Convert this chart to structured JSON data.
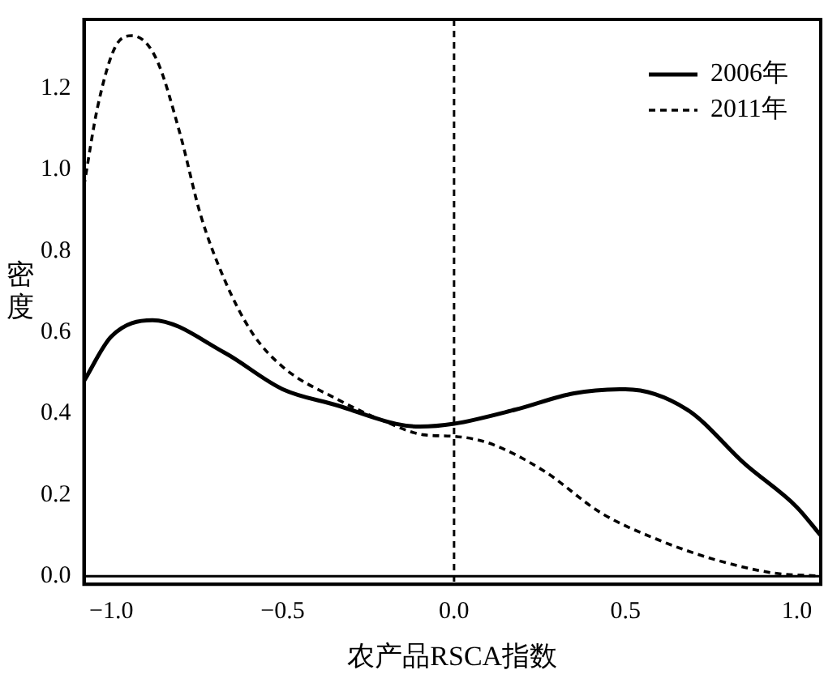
{
  "chart_data": {
    "type": "line",
    "xlabel": "农产品RSCA指数",
    "ylabel": "密度",
    "xlim": [
      -1.08,
      1.07
    ],
    "ylim": [
      -0.02,
      1.37
    ],
    "xticks": [
      {
        "value": -1,
        "label": "−1.0"
      },
      {
        "value": -0.5,
        "label": "−0.5"
      },
      {
        "value": 0,
        "label": "0.0"
      },
      {
        "value": 0.5,
        "label": "0.5"
      },
      {
        "value": 1,
        "label": "1.0"
      }
    ],
    "yticks": [
      {
        "value": 0,
        "label": "0.0"
      },
      {
        "value": 0.2,
        "label": "0.2"
      },
      {
        "value": 0.4,
        "label": "0.4"
      },
      {
        "value": 0.6,
        "label": "0.6"
      },
      {
        "value": 0.8,
        "label": "0.8"
      },
      {
        "value": 1,
        "label": "1.0"
      },
      {
        "value": 1.2,
        "label": "1.2"
      }
    ],
    "grid": false,
    "legend": "top right",
    "marker": "none",
    "ref_lines": [
      {
        "axis": "x",
        "value": 0,
        "color": "#000000",
        "line_style": "dashed"
      },
      {
        "axis": "y",
        "value": 0,
        "color": "#000000",
        "line_style": "solid"
      }
    ],
    "series": [
      {
        "name": "2006年",
        "color": "#000000",
        "line_style": "solid",
        "x": [
          -1.08,
          -1.0,
          -0.88,
          -0.67,
          -0.5,
          -0.34,
          -0.17,
          -0.1,
          0.0,
          0.18,
          0.35,
          0.5,
          0.68,
          0.85,
          1.0,
          1.07
        ],
        "values": [
          0.48,
          0.59,
          0.63,
          0.55,
          0.46,
          0.42,
          0.375,
          0.368,
          0.375,
          0.41,
          0.45,
          0.46,
          0.41,
          0.275,
          0.17,
          0.1
        ]
      },
      {
        "name": "2011年",
        "color": "#000000",
        "line_style": "dashed",
        "x": [
          -1.08,
          -1.04,
          -0.99,
          -0.94,
          -0.87,
          -0.8,
          -0.74,
          -0.67,
          -0.59,
          -0.5,
          -0.34,
          -0.2,
          -0.09,
          0.0,
          0.1,
          0.26,
          0.43,
          0.6,
          0.76,
          0.93,
          1.07
        ],
        "values": [
          0.96,
          1.155,
          1.3,
          1.33,
          1.275,
          1.09,
          0.89,
          0.73,
          0.6,
          0.515,
          0.435,
          0.38,
          0.348,
          0.344,
          0.328,
          0.26,
          0.155,
          0.088,
          0.041,
          0.008,
          0.0
        ]
      }
    ]
  }
}
